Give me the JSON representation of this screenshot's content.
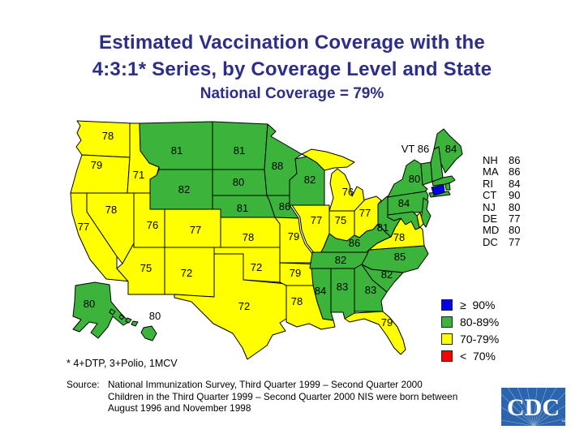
{
  "title": {
    "line1": "Estimated Vaccination Coverage with the",
    "line2": "4:3:1* Series, by Coverage Level and State",
    "subtitle": "National Coverage = 79%"
  },
  "legend": {
    "items": [
      {
        "label": "≥  90%",
        "color": "#0000EE",
        "min": 90
      },
      {
        "label": "80-89%",
        "color": "#3CB43C",
        "min": 80
      },
      {
        "label": "70-79%",
        "color": "#FFFF00",
        "min": 70
      },
      {
        "label": "<  70%",
        "color": "#FF0000",
        "min": 0
      }
    ]
  },
  "map": {
    "states": [
      {
        "abbr": "WA",
        "name": "Washington",
        "value": 78,
        "map_label": "78"
      },
      {
        "abbr": "OR",
        "name": "Oregon",
        "value": 79,
        "map_label": "79"
      },
      {
        "abbr": "CA",
        "name": "California",
        "value": 77,
        "map_label": "77"
      },
      {
        "abbr": "NV",
        "name": "Nevada",
        "value": 78,
        "map_label": "78"
      },
      {
        "abbr": "ID",
        "name": "Idaho",
        "value": 71,
        "map_label": "71"
      },
      {
        "abbr": "MT",
        "name": "Montana",
        "value": 81,
        "map_label": "81"
      },
      {
        "abbr": "WY",
        "name": "Wyoming",
        "value": 82,
        "map_label": "82"
      },
      {
        "abbr": "UT",
        "name": "Utah",
        "value": 76,
        "map_label": "76"
      },
      {
        "abbr": "CO",
        "name": "Colorado",
        "value": 77,
        "map_label": "77"
      },
      {
        "abbr": "AZ",
        "name": "Arizona",
        "value": 75,
        "map_label": "75"
      },
      {
        "abbr": "NM",
        "name": "New Mexico",
        "value": 72,
        "map_label": "72"
      },
      {
        "abbr": "ND",
        "name": "North Dakota",
        "value": 81,
        "map_label": "81"
      },
      {
        "abbr": "SD",
        "name": "South Dakota",
        "value": 80,
        "map_label": "80"
      },
      {
        "abbr": "NE",
        "name": "Nebraska",
        "value": 81,
        "map_label": "81"
      },
      {
        "abbr": "KS",
        "name": "Kansas",
        "value": 78,
        "map_label": "78"
      },
      {
        "abbr": "OK",
        "name": "Oklahoma",
        "value": 72,
        "map_label": "72"
      },
      {
        "abbr": "TX",
        "name": "Texas",
        "value": 72,
        "map_label": "72"
      },
      {
        "abbr": "MN",
        "name": "Minnesota",
        "value": 88,
        "map_label": "88"
      },
      {
        "abbr": "IA",
        "name": "Iowa",
        "value": 86,
        "map_label": "86"
      },
      {
        "abbr": "MO",
        "name": "Missouri",
        "value": 79,
        "map_label": "79"
      },
      {
        "abbr": "AR",
        "name": "Arkansas",
        "value": 79,
        "map_label": "79"
      },
      {
        "abbr": "LA",
        "name": "Louisiana",
        "value": 78,
        "map_label": "78"
      },
      {
        "abbr": "WI",
        "name": "Wisconsin",
        "value": 82,
        "map_label": "82"
      },
      {
        "abbr": "IL",
        "name": "Illinois",
        "value": 77,
        "map_label": "77"
      },
      {
        "abbr": "MI",
        "name": "Michigan",
        "value": 76,
        "map_label": "76"
      },
      {
        "abbr": "IN",
        "name": "Indiana",
        "value": 75,
        "map_label": "75"
      },
      {
        "abbr": "OH",
        "name": "Ohio",
        "value": 77,
        "map_label": "77"
      },
      {
        "abbr": "KY",
        "name": "Kentucky",
        "value": 86,
        "map_label": "86"
      },
      {
        "abbr": "TN",
        "name": "Tennessee",
        "value": 82,
        "map_label": "82"
      },
      {
        "abbr": "MS",
        "name": "Mississippi",
        "value": 84,
        "map_label": "84"
      },
      {
        "abbr": "AL",
        "name": "Alabama",
        "value": 83,
        "map_label": "83"
      },
      {
        "abbr": "GA",
        "name": "Georgia",
        "value": 83,
        "map_label": "83"
      },
      {
        "abbr": "FL",
        "name": "Florida",
        "value": 79,
        "map_label": "79"
      },
      {
        "abbr": "SC",
        "name": "South Carolina",
        "value": 82,
        "map_label": "82"
      },
      {
        "abbr": "NC",
        "name": "North Carolina",
        "value": 85,
        "map_label": "85"
      },
      {
        "abbr": "VA",
        "name": "Virginia",
        "value": 78,
        "map_label": "78"
      },
      {
        "abbr": "WV",
        "name": "West Virginia",
        "value": 81,
        "map_label": "81"
      },
      {
        "abbr": "PA",
        "name": "Pennsylvania",
        "value": 84,
        "map_label": "84"
      },
      {
        "abbr": "NY",
        "name": "New York",
        "value": 80,
        "map_label": "80"
      },
      {
        "abbr": "VT",
        "name": "Vermont",
        "value": 86,
        "map_label": "VT 86"
      },
      {
        "abbr": "ME",
        "name": "Maine",
        "value": 84,
        "map_label": "84"
      },
      {
        "abbr": "NH",
        "name": "New Hampshire",
        "value": 86
      },
      {
        "abbr": "MA",
        "name": "Massachusetts",
        "value": 86
      },
      {
        "abbr": "RI",
        "name": "Rhode Island",
        "value": 84
      },
      {
        "abbr": "CT",
        "name": "Connecticut",
        "value": 90
      },
      {
        "abbr": "NJ",
        "name": "New Jersey",
        "value": 80
      },
      {
        "abbr": "DE",
        "name": "Delaware",
        "value": 77
      },
      {
        "abbr": "MD",
        "name": "Maryland",
        "value": 80
      },
      {
        "abbr": "DC",
        "name": "District of Columbia",
        "value": 77
      },
      {
        "abbr": "AK",
        "name": "Alaska",
        "value": 80,
        "map_label": "80"
      },
      {
        "abbr": "HI",
        "name": "Hawaii",
        "value": 80,
        "map_label": "80"
      }
    ]
  },
  "side_list": {
    "items": [
      {
        "abbr": "NH",
        "value": "86"
      },
      {
        "abbr": "MA",
        "value": "86"
      },
      {
        "abbr": "RI",
        "value": "84"
      },
      {
        "abbr": "CT",
        "value": "90"
      },
      {
        "abbr": "NJ",
        "value": "80"
      },
      {
        "abbr": "DE",
        "value": "77"
      },
      {
        "abbr": "MD",
        "value": "80"
      },
      {
        "abbr": "DC",
        "value": "77"
      }
    ]
  },
  "footnote": "* 4+DTP, 3+Polio, 1MCV",
  "source": {
    "label": "Source:",
    "lines": [
      "National Immunization Survey, Third Quarter 1999 – Second Quarter 2000",
      "Children in the Third Quarter 1999 – Second Quarter 2000 NIS were born between",
      "August 1996 and November 1998"
    ]
  },
  "logo": {
    "text": "CDC",
    "tm": "™",
    "color": "#2A65AD"
  }
}
